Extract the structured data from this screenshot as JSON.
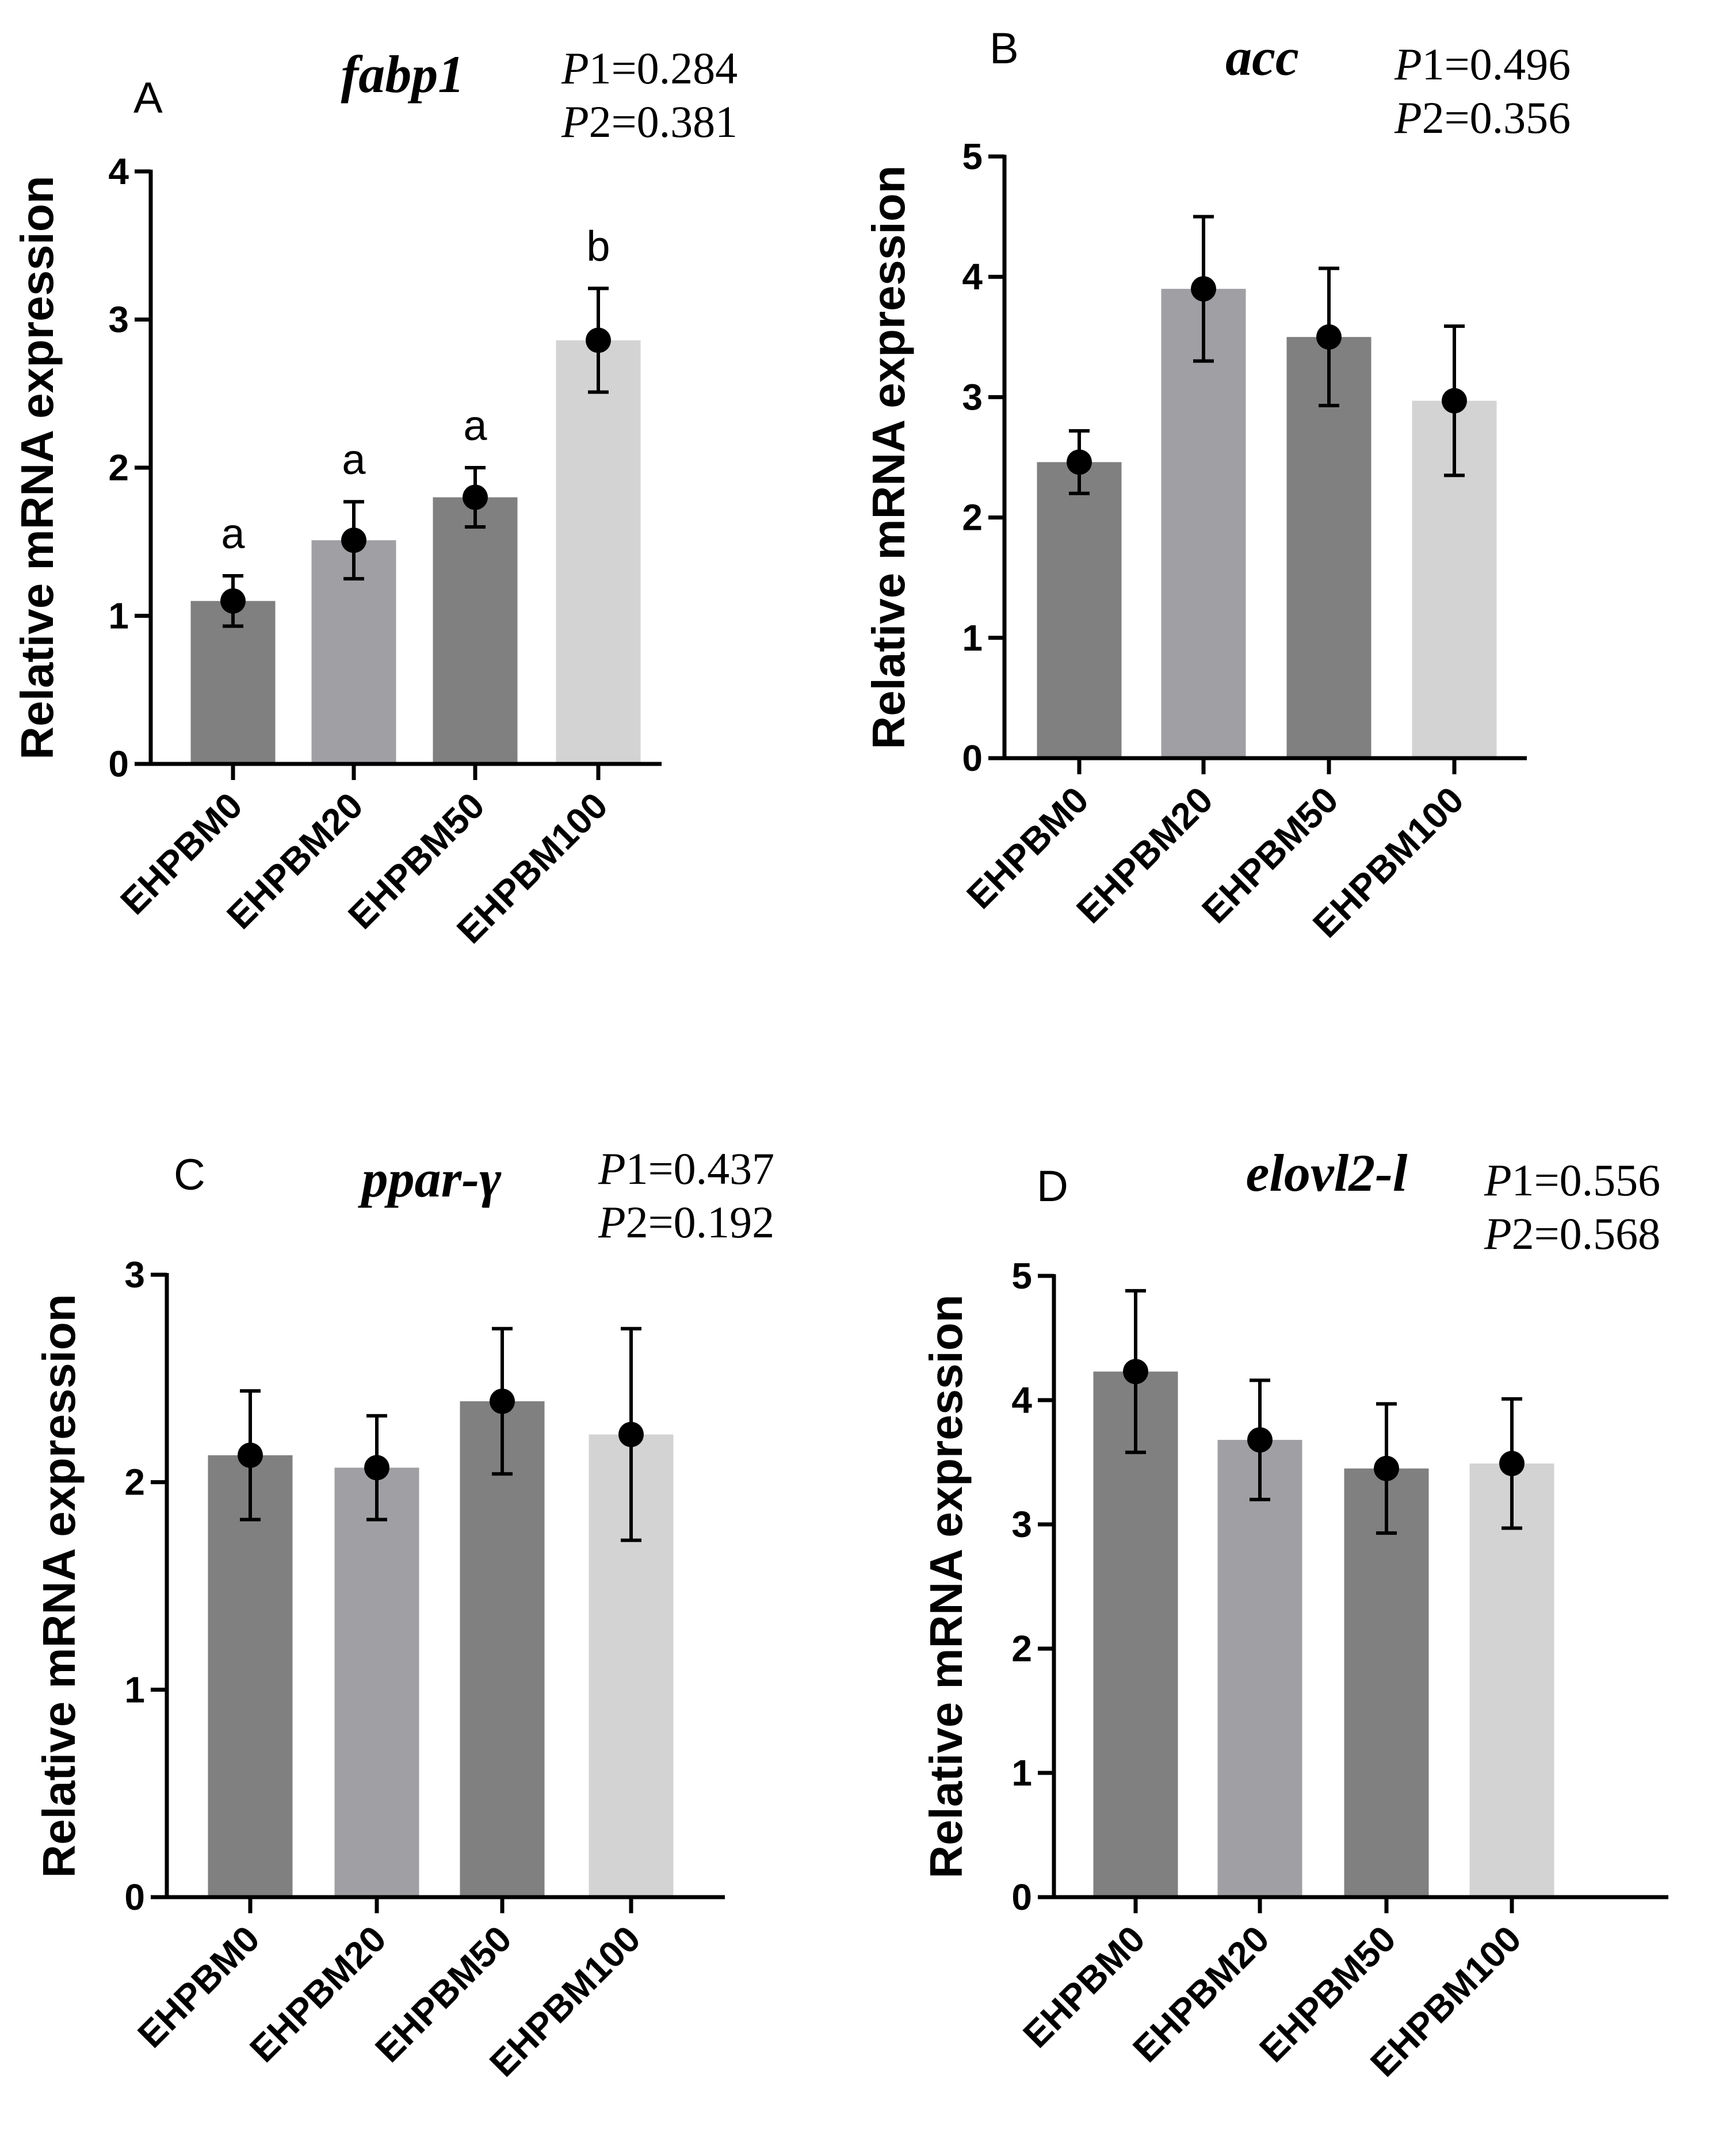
{
  "chart_data": [
    {
      "panel": "A",
      "type": "bar",
      "title": "fabp1",
      "p_values": [
        {
          "name": "P",
          "suffix": "1",
          "value": "=0.284"
        },
        {
          "name": "P",
          "suffix": "2",
          "value": "=0.381"
        }
      ],
      "ylabel": "Relative mRNA expression",
      "ylim": [
        0,
        4
      ],
      "yticks": [
        "0",
        "1",
        "2",
        "3",
        "4"
      ],
      "categories": [
        "EHPBM0",
        "EHPBM20",
        "EHPBM50",
        "EHPBM100"
      ],
      "values": [
        1.1,
        1.51,
        1.8,
        2.86
      ],
      "errors": [
        0.17,
        0.26,
        0.2,
        0.35
      ],
      "significance": [
        "a",
        "a",
        "a",
        "b"
      ],
      "colors": [
        "#808080",
        "#a0a0a4",
        "#808080",
        "#d3d3d3"
      ]
    },
    {
      "panel": "B",
      "type": "bar",
      "title": "acc",
      "p_values": [
        {
          "name": "P",
          "suffix": "1",
          "value": "=0.496"
        },
        {
          "name": "P",
          "suffix": "2",
          "value": "=0.356"
        }
      ],
      "ylabel": "Relative mRNA expression",
      "ylim": [
        0,
        5
      ],
      "yticks": [
        "0",
        "1",
        "2",
        "3",
        "4",
        "5"
      ],
      "categories": [
        "EHPBM0",
        "EHPBM20",
        "EHPBM50",
        "EHPBM100"
      ],
      "values": [
        2.46,
        3.9,
        3.5,
        2.97
      ],
      "errors": [
        0.26,
        0.6,
        0.57,
        0.62
      ],
      "significance": [],
      "colors": [
        "#808080",
        "#a0a0a4",
        "#808080",
        "#d3d3d3"
      ]
    },
    {
      "panel": "C",
      "type": "bar",
      "title": "ppar-γ",
      "p_values": [
        {
          "name": "P",
          "suffix": "1",
          "value": "=0.437"
        },
        {
          "name": "P",
          "suffix": "2",
          "value": "=0.192"
        }
      ],
      "ylabel": "Relative mRNA expression",
      "ylim": [
        0,
        3
      ],
      "yticks": [
        "0",
        "1",
        "2",
        "3"
      ],
      "categories": [
        "EHPBM0",
        "EHPBM20",
        "EHPBM50",
        "EHPBM100"
      ],
      "values": [
        2.13,
        2.07,
        2.39,
        2.23
      ],
      "errors": [
        0.31,
        0.25,
        0.35,
        0.51
      ],
      "significance": [],
      "colors": [
        "#808080",
        "#a0a0a4",
        "#808080",
        "#d3d3d3"
      ]
    },
    {
      "panel": "D",
      "type": "bar",
      "title": "elovl2-l",
      "p_values": [
        {
          "name": "P",
          "suffix": "1",
          "value": "=0.556"
        },
        {
          "name": "P",
          "suffix": "2",
          "value": "=0.568"
        }
      ],
      "ylabel": "Relative mRNA expression",
      "ylim": [
        0,
        5
      ],
      "yticks": [
        "0",
        "1",
        "2",
        "3",
        "4",
        "5"
      ],
      "categories": [
        "EHPBM0",
        "EHPBM20",
        "EHPBM50",
        "EHPBM100"
      ],
      "values": [
        4.23,
        3.68,
        3.45,
        3.49
      ],
      "errors": [
        0.65,
        0.48,
        0.52,
        0.52
      ],
      "significance": [],
      "colors": [
        "#808080",
        "#a0a0a4",
        "#808080",
        "#d3d3d3"
      ]
    }
  ]
}
